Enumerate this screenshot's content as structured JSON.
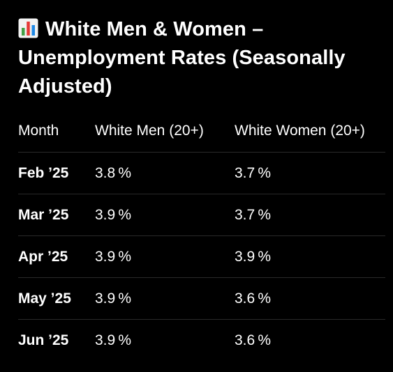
{
  "header": {
    "icon": "bar-chart-icon",
    "title": "White Men & Women – Unemployment Rates (Seasonally Adjusted)"
  },
  "table": {
    "columns": [
      "Month",
      "White Men (20+)",
      "White Women (20+)"
    ],
    "rows": [
      {
        "month": "Feb ’25",
        "men": "3.8 %",
        "women": "3.7 %"
      },
      {
        "month": "Mar ’25",
        "men": "3.9 %",
        "women": "3.7 %"
      },
      {
        "month": "Apr ’25",
        "men": "3.9 %",
        "women": "3.9 %"
      },
      {
        "month": "May ’25",
        "men": "3.9 %",
        "women": "3.6 %"
      },
      {
        "month": "Jun ’25",
        "men": "3.9 %",
        "women": "3.6 %"
      }
    ]
  },
  "colors": {
    "background": "#000000",
    "text": "#ffffff",
    "divider": "#2a2a2a",
    "icon_red": "#e53935",
    "icon_green": "#43a047",
    "icon_blue": "#1e88e5"
  }
}
